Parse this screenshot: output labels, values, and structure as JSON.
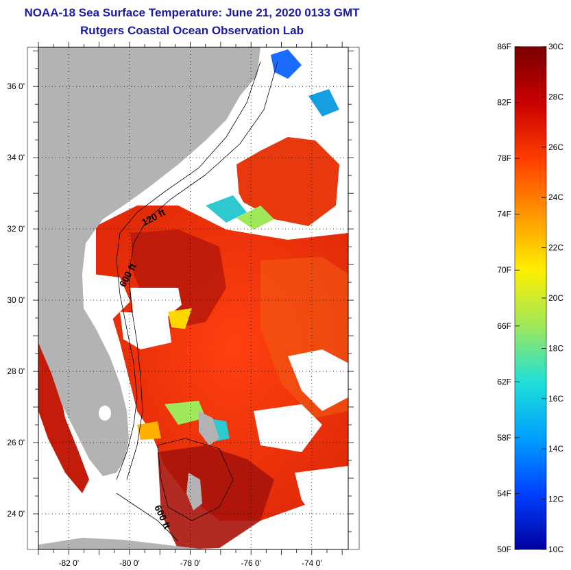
{
  "title_line1": "NOAA-18 Sea Surface Temperature:  June 21, 2020 0133 GMT",
  "title_line2": "Rutgers Coastal Ocean Observation Lab",
  "map": {
    "longitude_labels": [
      "-82 0'",
      "-80 0'",
      "-78 0'",
      "-76 0'",
      "-74 0'"
    ],
    "latitude_labels": [
      "36 0'",
      "34 0'",
      "32 0'",
      "30 0'",
      "28 0'",
      "26 0'",
      "24 0'"
    ],
    "lon_range": [
      -83,
      -72.8
    ],
    "lat_range": [
      23,
      37.1
    ],
    "contour_labels": [
      "120 ft",
      "600 ft",
      "600 ft"
    ],
    "colors": {
      "land": "#b3b3b3",
      "cloud": "#ffffff",
      "warm_sst": "#e8300c",
      "hot_sst": "#a8140a",
      "mid_sst": "#ff6a00",
      "cool_sst": "#14a0e0"
    }
  },
  "colorbar": {
    "fahrenheit_labels": [
      "86F",
      "82F",
      "78F",
      "74F",
      "70F",
      "66F",
      "62F",
      "58F",
      "54F",
      "50F"
    ],
    "celsius_labels": [
      "30C",
      "28C",
      "26C",
      "24C",
      "22C",
      "20C",
      "18C",
      "16C",
      "14C",
      "12C",
      "10C"
    ],
    "f_range": [
      50,
      86
    ],
    "c_range": [
      10,
      30
    ],
    "gradient": [
      "#7a0000",
      "#c80000",
      "#ff3c00",
      "#ff9600",
      "#ffee00",
      "#9ee85a",
      "#1ee0d8",
      "#00a0ff",
      "#0040ff",
      "#0000a0"
    ]
  }
}
